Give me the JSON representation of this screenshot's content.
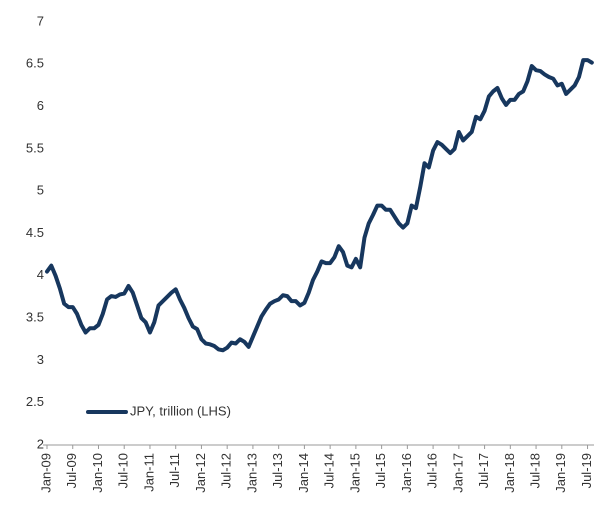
{
  "chart_data": {
    "type": "line",
    "categories": [
      "Jan-09",
      null,
      null,
      null,
      null,
      null,
      "Jul-09",
      null,
      null,
      null,
      null,
      null,
      "Jan-10",
      null,
      null,
      null,
      null,
      null,
      "Jul-10",
      null,
      null,
      null,
      null,
      null,
      "Jan-11",
      null,
      null,
      null,
      null,
      null,
      "Jul-11",
      null,
      null,
      null,
      null,
      null,
      "Jan-12",
      null,
      null,
      null,
      null,
      null,
      "Jul-12",
      null,
      null,
      null,
      null,
      null,
      "Jan-13",
      null,
      null,
      null,
      null,
      null,
      "Jul-13",
      null,
      null,
      null,
      null,
      null,
      "Jan-14",
      null,
      null,
      null,
      null,
      null,
      "Jul-14",
      null,
      null,
      null,
      null,
      null,
      "Jan-15",
      null,
      null,
      null,
      null,
      null,
      "Jul-15",
      null,
      null,
      null,
      null,
      null,
      "Jan-16",
      null,
      null,
      null,
      null,
      null,
      "Jul-16",
      null,
      null,
      null,
      null,
      null,
      "Jan-17",
      null,
      null,
      null,
      null,
      null,
      "Jul-17",
      null,
      null,
      null,
      null,
      null,
      "Jan-18",
      null,
      null,
      null,
      null,
      null,
      "Jul-18",
      null,
      null,
      null,
      null,
      null,
      "Jan-19",
      null,
      null,
      null,
      null,
      null,
      "Jul-19",
      null
    ],
    "series": [
      {
        "name": "JPY, trillion (LHS)",
        "color": "#17375e",
        "values": [
          4.05,
          4.12,
          4.0,
          3.85,
          3.67,
          3.63,
          3.63,
          3.55,
          3.42,
          3.33,
          3.38,
          3.38,
          3.42,
          3.55,
          3.72,
          3.76,
          3.75,
          3.78,
          3.79,
          3.88,
          3.8,
          3.65,
          3.5,
          3.45,
          3.33,
          3.45,
          3.65,
          3.7,
          3.75,
          3.8,
          3.84,
          3.72,
          3.62,
          3.5,
          3.4,
          3.37,
          3.25,
          3.2,
          3.19,
          3.17,
          3.13,
          3.12,
          3.15,
          3.21,
          3.2,
          3.25,
          3.22,
          3.16,
          3.28,
          3.4,
          3.52,
          3.6,
          3.67,
          3.7,
          3.72,
          3.77,
          3.76,
          3.7,
          3.7,
          3.65,
          3.68,
          3.8,
          3.95,
          4.05,
          4.17,
          4.15,
          4.15,
          4.22,
          4.35,
          4.28,
          4.12,
          4.1,
          4.2,
          4.1,
          4.45,
          4.62,
          4.72,
          4.83,
          4.83,
          4.78,
          4.78,
          4.7,
          4.62,
          4.57,
          4.62,
          4.83,
          4.8,
          5.05,
          5.33,
          5.28,
          5.48,
          5.58,
          5.55,
          5.5,
          5.45,
          5.5,
          5.7,
          5.6,
          5.65,
          5.7,
          5.88,
          5.85,
          5.95,
          6.12,
          6.18,
          6.22,
          6.1,
          6.02,
          6.08,
          6.08,
          6.15,
          6.18,
          6.3,
          6.48,
          6.43,
          6.42,
          6.38,
          6.35,
          6.33,
          6.25,
          6.27,
          6.15,
          6.2,
          6.25,
          6.35,
          6.55,
          6.55,
          6.52
        ]
      }
    ],
    "ylim": [
      2,
      7
    ],
    "yticks": [
      2,
      2.5,
      3,
      3.5,
      4,
      4.5,
      5,
      5.5,
      6,
      6.5,
      7
    ],
    "grid": false,
    "legend": "lower left"
  }
}
